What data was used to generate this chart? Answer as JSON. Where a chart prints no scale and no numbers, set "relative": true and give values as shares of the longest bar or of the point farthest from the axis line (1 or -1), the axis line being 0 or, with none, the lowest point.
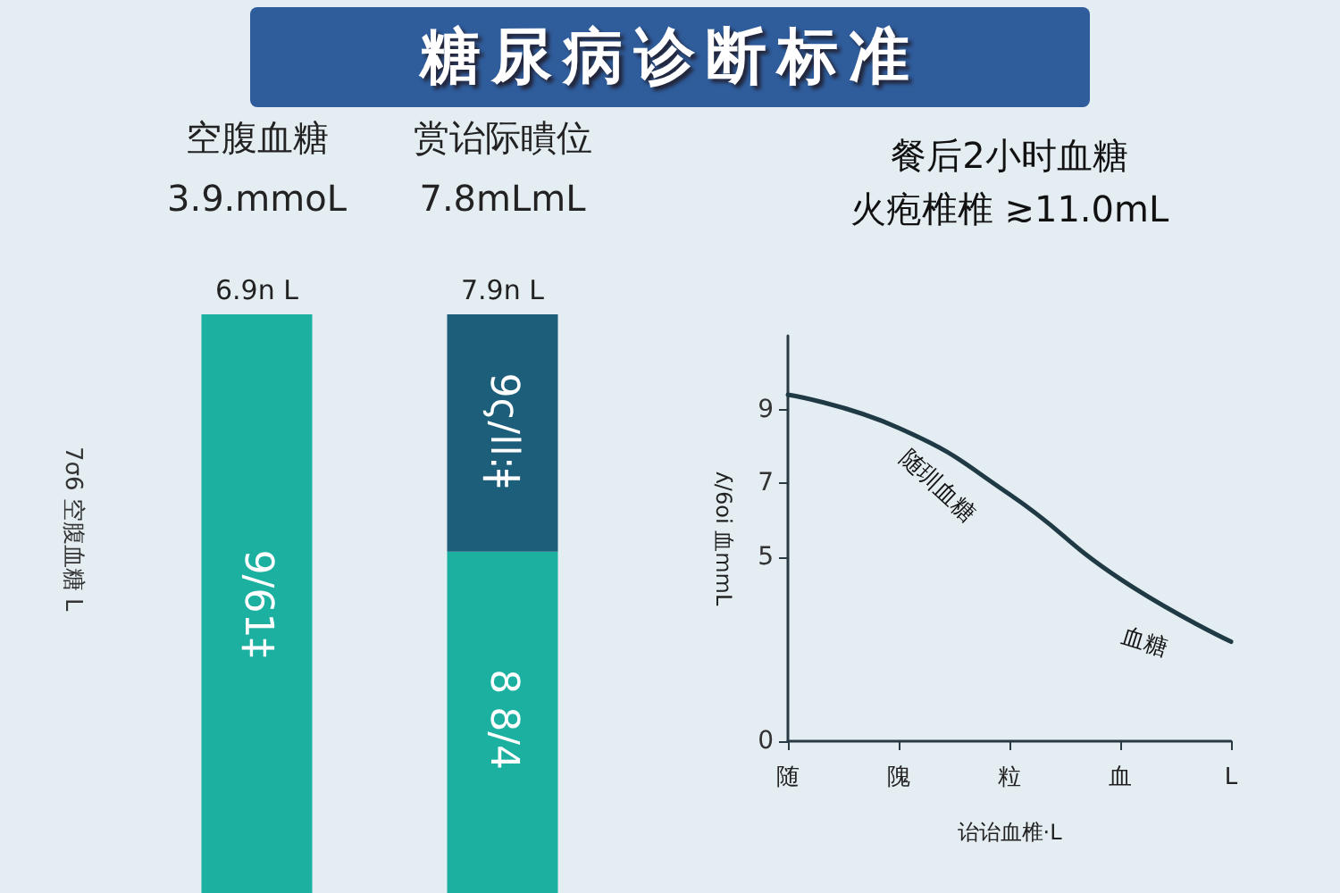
{
  "chart_data": [
    {
      "type": "bar",
      "title": "糖尿病诊断标准",
      "ylabel": "7σ6 空腹血糖 L",
      "categories": [
        "空腹血糖\n3.9.mmoL",
        "赏诒际瞶位\n7.8mLmL"
      ],
      "stacked": true,
      "relative": true,
      "series": [
        {
          "color": "#1bb0a0",
          "values": [
            1,
            0.59
          ]
        },
        {
          "color": "#1d5f7a",
          "values": [
            null,
            0.41
          ]
        }
      ],
      "annotations": [
        "6.9n L",
        "7.9n L",
        "9/61‡",
        "8 8/4",
        "9ς/ll:ǂ"
      ]
    },
    {
      "type": "line",
      "title": "餐后2小时血糖",
      "subtitle": "火疱椎椎 ≳11.0mL",
      "xlabel": "诒诒血椎·L",
      "ylabel": "ʎ/6oi 血mmL",
      "categories": [
        "随",
        "隗",
        "粒",
        "血",
        "L"
      ],
      "series": [
        {
          "color": "#1f3a44",
          "values": [
            9.4,
            8.5,
            6.7,
            4.4,
            2.7
          ]
        }
      ],
      "ylim": [
        0,
        11
      ],
      "yticks": [
        0,
        5,
        7,
        9
      ],
      "marker": "none",
      "line_style": "solid",
      "annotations": [
        "随玔血糖",
        "血糖"
      ]
    }
  ]
}
